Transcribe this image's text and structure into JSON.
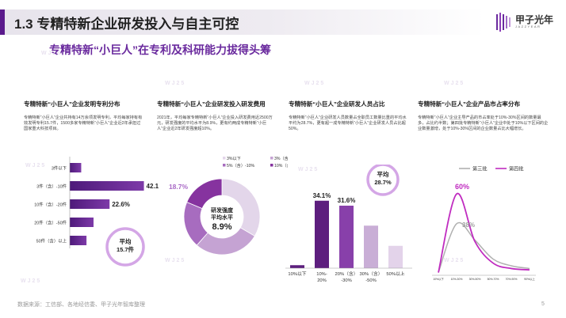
{
  "header": {
    "title": "1.3 专精特新企业研发投入与自主可控",
    "subtitle": "专精特新“小巨人”在专利及科研能力拔得头筹",
    "logo_text": "甲子光年",
    "logo_sub": "JAZZYEAR"
  },
  "watermark_text": "WJ25",
  "panels": [
    {
      "title": "专精特新“小巨人”企业发明专利分布",
      "desc": "专精特新“小巨人”企业共持有14万余项发明专利，平均每家持有有效发明专利15.7件，1500多家专精特新“小巨人”企业近2年承担过国家重大科技项目。"
    },
    {
      "title": "专精特新“小巨人”企业研发投入研发费用",
      "desc": "2021年，平均每家专精特新“小巨人”企业投入研发费用近2500万元，研发强度的平均水平为8.9%，更有约两成专精特新“小巨人”企业近2年研发强度超10%。"
    },
    {
      "title": "专精特新“小巨人”企业研发人员占比",
      "desc": "专精特新“小巨人”企业研发人员数量占全职员工数量比重的平均水平约为28.7%，更有超一成专精特新“小巨人”企业研发人员占比超50%。"
    },
    {
      "title": "专精特新“小巨人”企业产品市占率分布",
      "desc": "专精特新“小巨人”企业主导产品的市占率处于10%-30%区间的数量最多，占比约半数；第四批专精特新“小巨人”企业中处于10%以下区间的企业数量激增，处于10%-30%区间的企业数量占比大幅增长。"
    }
  ],
  "chart_data": [
    {
      "type": "bar",
      "orientation": "horizontal",
      "categories": [
        "3件以下",
        "3件（含）-10件",
        "10件（含）-20件",
        "20件（含）-50件",
        "50件（含）以上"
      ],
      "values": [
        6.5,
        42.1,
        22.6,
        13.5,
        9.5
      ],
      "data_labels": [
        "",
        "42.1%",
        "22.6%",
        "",
        ""
      ],
      "annotation": "平均\n15.7件",
      "color": "#6a2a9e"
    },
    {
      "type": "pie",
      "style": "donut",
      "categories": [
        "3%以下",
        "3%（含）-5%",
        "5%（含）-10%",
        "10%（含）以上"
      ],
      "values": [
        33.5,
        28.0,
        19.8,
        18.7
      ],
      "colors": [
        "#e3d6ea",
        "#c5a3d3",
        "#a76cbf",
        "#86339f"
      ],
      "data_labels": [
        "",
        "",
        "",
        "18.7%"
      ],
      "center_label": [
        "研发强度",
        "平均水平",
        "8.9%"
      ]
    },
    {
      "type": "bar",
      "categories": [
        "10%以下",
        "10%-20%",
        "20%（含）-30%",
        "30%（含）-50%",
        "50%以上"
      ],
      "tick_labels": [
        [
          "10%以下"
        ],
        [
          "10%-",
          "20%"
        ],
        [
          "20%（含）",
          "-30%"
        ],
        [
          "30%（含）",
          "-50%"
        ],
        [
          "50%以上"
        ]
      ],
      "values": [
        1.5,
        34.1,
        31.6,
        21.5,
        11.3
      ],
      "data_labels": [
        "",
        "34.1%",
        "31.6%",
        "",
        ""
      ],
      "colors": [
        "#5d1e7e",
        "#5d1e7e",
        "#8840aa",
        "#c9aed6",
        "#e3d3ea"
      ],
      "annotation": "平均\n28.7%",
      "ylim": [
        0,
        40
      ]
    },
    {
      "type": "line",
      "x": [
        "10%以下",
        "10%-30%",
        "30%-50%",
        "50%-70%",
        "70%-90%",
        "90%以上"
      ],
      "series": [
        {
          "name": "第三批",
          "values": [
            2,
            38,
            26,
            12,
            7,
            5
          ],
          "color": "#b0b0b0"
        },
        {
          "name": "第四批",
          "values": [
            2,
            60,
            25,
            9,
            5,
            4
          ],
          "color": "#c02cc0"
        }
      ],
      "data_labels": [
        "38%",
        "60%"
      ],
      "ylim": [
        0,
        70
      ]
    }
  ],
  "footer": {
    "source": "数据来源：工信部、各地经信委、甲子光年智库整理",
    "page": "5"
  }
}
